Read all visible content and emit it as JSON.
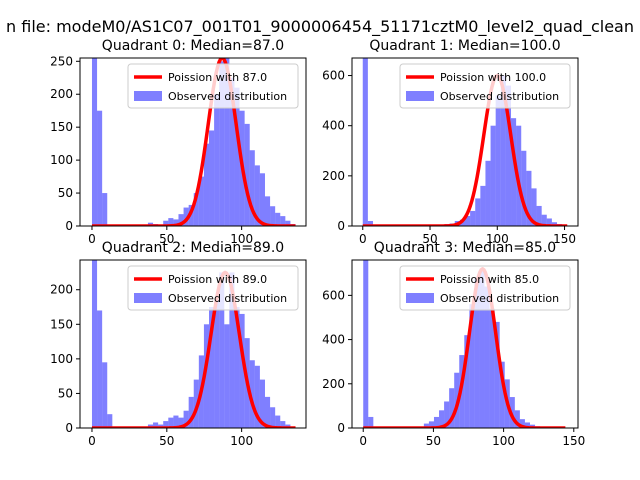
{
  "figure": {
    "suptitle": "n file: modeM0/AS1C07_001T01_9000006454_51171cztM0_level2_quad_clean"
  },
  "chart_data": [
    {
      "type": "bar",
      "title": "Quadrant 0: Median=87.0",
      "xlim": [
        -8,
        143
      ],
      "ylim": [
        0,
        255
      ],
      "xticks": [
        0,
        50,
        100
      ],
      "yticks": [
        0,
        50,
        100,
        150,
        200,
        250
      ],
      "legend_placement": "upper-right",
      "legend": [
        "Poission with 87.0",
        "Observed distribution"
      ],
      "poisson_mean": 87,
      "bin_width": 3.4,
      "bins_x0": [
        0,
        3.4,
        6.8,
        10.2,
        13.6,
        17,
        20.4,
        23.8,
        27.2,
        30.6,
        34,
        37.4,
        40.8,
        44.2,
        47.6,
        51,
        54.4,
        57.8,
        61.2,
        64.6,
        68,
        71.4,
        74.8,
        78.2,
        81.6,
        85,
        88.4,
        91.8,
        95.2,
        98.6,
        102,
        105.4,
        108.8,
        112.2,
        115.6,
        119,
        122.4,
        125.8,
        129.2,
        132.6
      ],
      "counts": [
        255,
        175,
        50,
        0,
        0,
        2,
        0,
        0,
        0,
        0,
        0,
        5,
        3,
        2,
        8,
        12,
        10,
        18,
        28,
        32,
        50,
        75,
        125,
        145,
        200,
        250,
        255,
        225,
        210,
        175,
        155,
        115,
        92,
        80,
        45,
        30,
        20,
        15,
        8,
        3
      ]
    },
    {
      "type": "bar",
      "title": "Quadrant 1: Median=100.0",
      "xlim": [
        -8,
        160
      ],
      "ylim": [
        0,
        670
      ],
      "xticks": [
        0,
        50,
        100,
        150
      ],
      "yticks": [
        0,
        200,
        400,
        600
      ],
      "legend_placement": "upper-right",
      "legend": [
        "Poission with 100.0",
        "Observed distribution"
      ],
      "poisson_mean": 100,
      "bin_width": 3.8,
      "bins_x0": [
        0,
        3.8,
        7.6,
        11.4,
        15.2,
        19,
        22.8,
        26.6,
        30.4,
        34.2,
        38,
        41.8,
        45.6,
        49.4,
        53.2,
        57,
        60.8,
        64.6,
        68.4,
        72.2,
        76,
        79.8,
        83.6,
        87.4,
        91.2,
        95,
        98.8,
        102.6,
        106.4,
        110.2,
        114,
        117.8,
        121.6,
        125.4,
        129.2,
        133,
        136.8,
        140.6,
        144.4,
        148.2
      ],
      "counts": [
        670,
        20,
        0,
        0,
        0,
        0,
        0,
        0,
        0,
        0,
        0,
        0,
        0,
        0,
        0,
        5,
        8,
        10,
        20,
        25,
        40,
        60,
        110,
        160,
        260,
        400,
        520,
        600,
        560,
        430,
        400,
        300,
        220,
        150,
        80,
        45,
        30,
        15,
        8,
        3
      ]
    },
    {
      "type": "bar",
      "title": "Quadrant 2: Median=89.0",
      "xlim": [
        -8,
        143
      ],
      "ylim": [
        0,
        243
      ],
      "xticks": [
        0,
        50,
        100
      ],
      "yticks": [
        0,
        50,
        100,
        150,
        200
      ],
      "legend_placement": "upper-right",
      "legend": [
        "Poission with 89.0",
        "Observed distribution"
      ],
      "poisson_mean": 89,
      "bin_width": 3.4,
      "bins_x0": [
        0,
        3.4,
        6.8,
        10.2,
        13.6,
        17,
        20.4,
        23.8,
        27.2,
        30.6,
        34,
        37.4,
        40.8,
        44.2,
        47.6,
        51,
        54.4,
        57.8,
        61.2,
        64.6,
        68,
        71.4,
        74.8,
        78.2,
        81.6,
        85,
        88.4,
        91.8,
        95.2,
        98.6,
        102,
        105.4,
        108.8,
        112.2,
        115.6,
        119,
        122.4,
        125.8,
        129.2,
        132.6
      ],
      "counts": [
        243,
        170,
        95,
        20,
        0,
        2,
        0,
        0,
        0,
        0,
        0,
        5,
        8,
        5,
        10,
        15,
        18,
        15,
        25,
        45,
        70,
        105,
        150,
        175,
        185,
        225,
        150,
        225,
        175,
        165,
        130,
        98,
        90,
        70,
        45,
        30,
        18,
        10,
        5,
        2
      ]
    },
    {
      "type": "bar",
      "title": "Quadrant 3: Median=85.0",
      "xlim": [
        -8,
        153
      ],
      "ylim": [
        0,
        760
      ],
      "xticks": [
        0,
        50,
        100,
        150
      ],
      "yticks": [
        0,
        200,
        400,
        600
      ],
      "legend_placement": "upper-right",
      "legend": [
        "Poission with 85.0",
        "Observed distribution"
      ],
      "poisson_mean": 85,
      "bin_width": 3.6,
      "bins_x0": [
        0,
        3.6,
        7.2,
        10.8,
        14.4,
        18,
        21.6,
        25.2,
        28.8,
        32.4,
        36,
        39.6,
        43.2,
        46.8,
        50.4,
        54,
        57.6,
        61.2,
        64.8,
        68.4,
        72,
        75.6,
        79.2,
        82.8,
        86.4,
        90,
        93.6,
        97.2,
        100.8,
        104.4,
        108,
        111.6,
        115.2,
        118.8,
        122.4,
        126,
        129.6,
        133.2,
        136.8,
        140.4
      ],
      "counts": [
        760,
        50,
        0,
        0,
        0,
        0,
        0,
        0,
        0,
        0,
        0,
        0,
        20,
        30,
        50,
        80,
        120,
        180,
        250,
        330,
        420,
        560,
        680,
        720,
        640,
        540,
        480,
        300,
        220,
        140,
        80,
        40,
        25,
        15,
        8,
        4,
        2,
        0,
        0,
        0
      ]
    }
  ]
}
